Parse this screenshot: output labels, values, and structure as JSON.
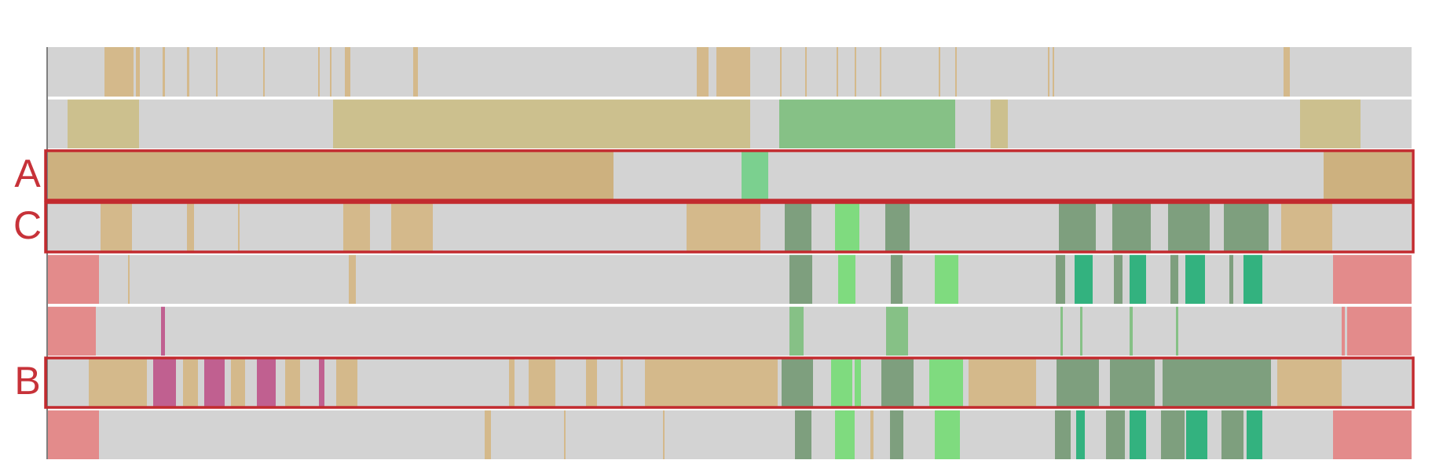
{
  "row_labels": {
    "a": "A",
    "b": "B",
    "c": "C"
  },
  "colors": {
    "background_track": "#d3d3d3",
    "tan": "#d4b98b",
    "olive_tan": "#ccc08e",
    "dark_tan": "#cdb17f",
    "green": "#86c186",
    "bright_green": "#7fdb7f",
    "mid_green": "#7bd08f",
    "dark_green": "#7e9f7e",
    "teal_green": "#2ab07a",
    "salmon": "#e38b8b",
    "magenta": "#c06090",
    "highlight_border": "#c22a2e",
    "label_color": "#c73239"
  }
}
